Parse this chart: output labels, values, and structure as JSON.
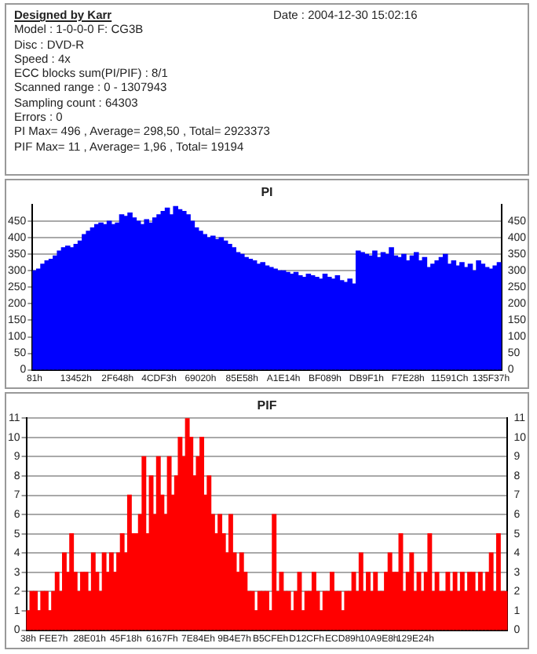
{
  "chart_data": [
    {
      "type": "other",
      "title": "Designed by Karr",
      "annotations": [
        "Date : 2004-12-30 15:02:16",
        "Model : 1-0-0-0 F: CG3B",
        "Disc : DVD-R",
        "Speed : 4x",
        "ECC blocks sum(PI/PIF) : 8/1",
        "Scanned range : 0 - 1307943",
        "Sampling count : 64303",
        "Errors : 0",
        "PI Max= 496 , Average= 298,50 , Total= 2923373",
        "PIF Max= 11 , Average= 1,96 , Total= 19194"
      ]
    },
    {
      "type": "bar",
      "title": "PI",
      "color": "#0000ff",
      "grid": "y",
      "ylim": [
        0,
        500
      ],
      "yticks": [
        0,
        50,
        100,
        150,
        200,
        250,
        300,
        350,
        400,
        450
      ],
      "y2lim": [
        0,
        500
      ],
      "y2ticks": [
        0,
        50,
        100,
        150,
        200,
        250,
        300,
        350,
        400,
        450
      ],
      "categories": [
        "81h",
        null,
        null,
        null,
        null,
        null,
        null,
        null,
        null,
        null,
        "13452h",
        null,
        null,
        null,
        null,
        null,
        null,
        null,
        null,
        null,
        "2F648h",
        null,
        null,
        null,
        null,
        null,
        null,
        null,
        null,
        null,
        "4CDF3h",
        null,
        null,
        null,
        null,
        null,
        null,
        null,
        null,
        null,
        "69020h",
        null,
        null,
        null,
        null,
        null,
        null,
        null,
        null,
        null,
        "85E58h",
        null,
        null,
        null,
        null,
        null,
        null,
        null,
        null,
        null,
        "A1E14h",
        null,
        null,
        null,
        null,
        null,
        null,
        null,
        null,
        null,
        "BF089h",
        null,
        null,
        null,
        null,
        null,
        null,
        null,
        null,
        null,
        "DB9F1h",
        null,
        null,
        null,
        null,
        null,
        null,
        null,
        null,
        null,
        "F7E28h",
        null,
        null,
        null,
        null,
        null,
        null,
        null,
        null,
        null,
        "11591Ch",
        null,
        null,
        null,
        null,
        null,
        null,
        null,
        null,
        null,
        "135F37h",
        null,
        null
      ],
      "values": [
        300,
        305,
        320,
        330,
        335,
        345,
        360,
        370,
        375,
        370,
        380,
        390,
        410,
        420,
        430,
        440,
        445,
        440,
        450,
        440,
        445,
        470,
        465,
        475,
        460,
        450,
        440,
        455,
        445,
        460,
        470,
        480,
        490,
        470,
        495,
        485,
        480,
        470,
        450,
        430,
        420,
        410,
        400,
        405,
        395,
        400,
        390,
        380,
        370,
        355,
        350,
        340,
        335,
        330,
        320,
        325,
        315,
        310,
        305,
        300,
        300,
        295,
        290,
        295,
        285,
        280,
        290,
        285,
        280,
        275,
        290,
        280,
        275,
        285,
        270,
        265,
        275,
        260,
        360,
        355,
        350,
        345,
        360,
        340,
        355,
        350,
        370,
        345,
        340,
        350,
        330,
        345,
        355,
        330,
        340,
        310,
        320,
        330,
        340,
        350,
        320,
        330,
        315,
        325,
        310,
        320,
        300,
        330,
        320,
        310,
        305,
        315,
        325
      ]
    },
    {
      "type": "bar",
      "title": "PIF",
      "color": "#ff0000",
      "grid": "y",
      "ylim": [
        0,
        11
      ],
      "yticks": [
        0,
        1,
        2,
        3,
        4,
        5,
        6,
        7,
        8,
        9,
        10,
        11
      ],
      "y2lim": [
        0,
        11
      ],
      "y2ticks": [
        0,
        1,
        2,
        3,
        4,
        5,
        6,
        7,
        8,
        9,
        10,
        11
      ],
      "categories": [
        "38h",
        null,
        null,
        null,
        null,
        null,
        null,
        "FEE7h",
        null,
        null,
        null,
        null,
        null,
        null,
        null,
        null,
        null,
        "28E01h",
        null,
        null,
        null,
        null,
        null,
        null,
        null,
        null,
        null,
        "45F18h",
        null,
        null,
        null,
        null,
        null,
        null,
        null,
        null,
        null,
        "6167Fh",
        null,
        null,
        null,
        null,
        null,
        null,
        null,
        null,
        null,
        "7E84Eh",
        null,
        null,
        null,
        null,
        null,
        null,
        null,
        null,
        null,
        "9B4E7h",
        null,
        null,
        null,
        null,
        null,
        null,
        null,
        null,
        null,
        "B5CFEh",
        null,
        null,
        null,
        null,
        null,
        null,
        null,
        null,
        null,
        "D12CFh",
        null,
        null,
        null,
        null,
        null,
        null,
        null,
        null,
        null,
        "ECD89h",
        null,
        null,
        null,
        null,
        null,
        null,
        null,
        null,
        null,
        "10A9E8h",
        null,
        null,
        null,
        null,
        null,
        null,
        null,
        null,
        null,
        "129E24h",
        null,
        null,
        null,
        null,
        null,
        null,
        null,
        null,
        null,
        null,
        null,
        null,
        null,
        null,
        null,
        null,
        null,
        null,
        null,
        null,
        null,
        null,
        null,
        null,
        null
      ],
      "values": [
        1,
        2,
        2,
        1,
        2,
        2,
        1,
        2,
        3,
        2,
        4,
        3,
        5,
        3,
        2,
        3,
        3,
        2,
        4,
        3,
        2,
        4,
        3,
        4,
        3,
        4,
        5,
        4,
        7,
        5,
        5,
        6,
        9,
        5,
        8,
        6,
        9,
        7,
        6,
        9,
        7,
        8,
        10,
        9,
        11,
        10,
        8,
        9,
        10,
        7,
        8,
        6,
        5,
        6,
        5,
        4,
        6,
        4,
        3,
        4,
        3,
        2,
        2,
        1,
        2,
        2,
        2,
        1,
        6,
        2,
        3,
        2,
        2,
        1,
        2,
        3,
        1,
        2,
        2,
        3,
        2,
        1,
        2,
        2,
        3,
        2,
        2,
        1,
        2,
        2,
        3,
        2,
        4,
        2,
        3,
        2,
        3,
        2,
        2,
        3,
        4,
        3,
        3,
        5,
        2,
        3,
        4,
        2,
        3,
        2,
        3,
        5,
        2,
        3,
        2,
        2,
        3,
        2,
        3,
        2,
        3,
        2,
        3,
        3,
        2,
        3,
        2,
        3,
        4,
        2,
        5,
        2,
        2
      ]
    }
  ]
}
